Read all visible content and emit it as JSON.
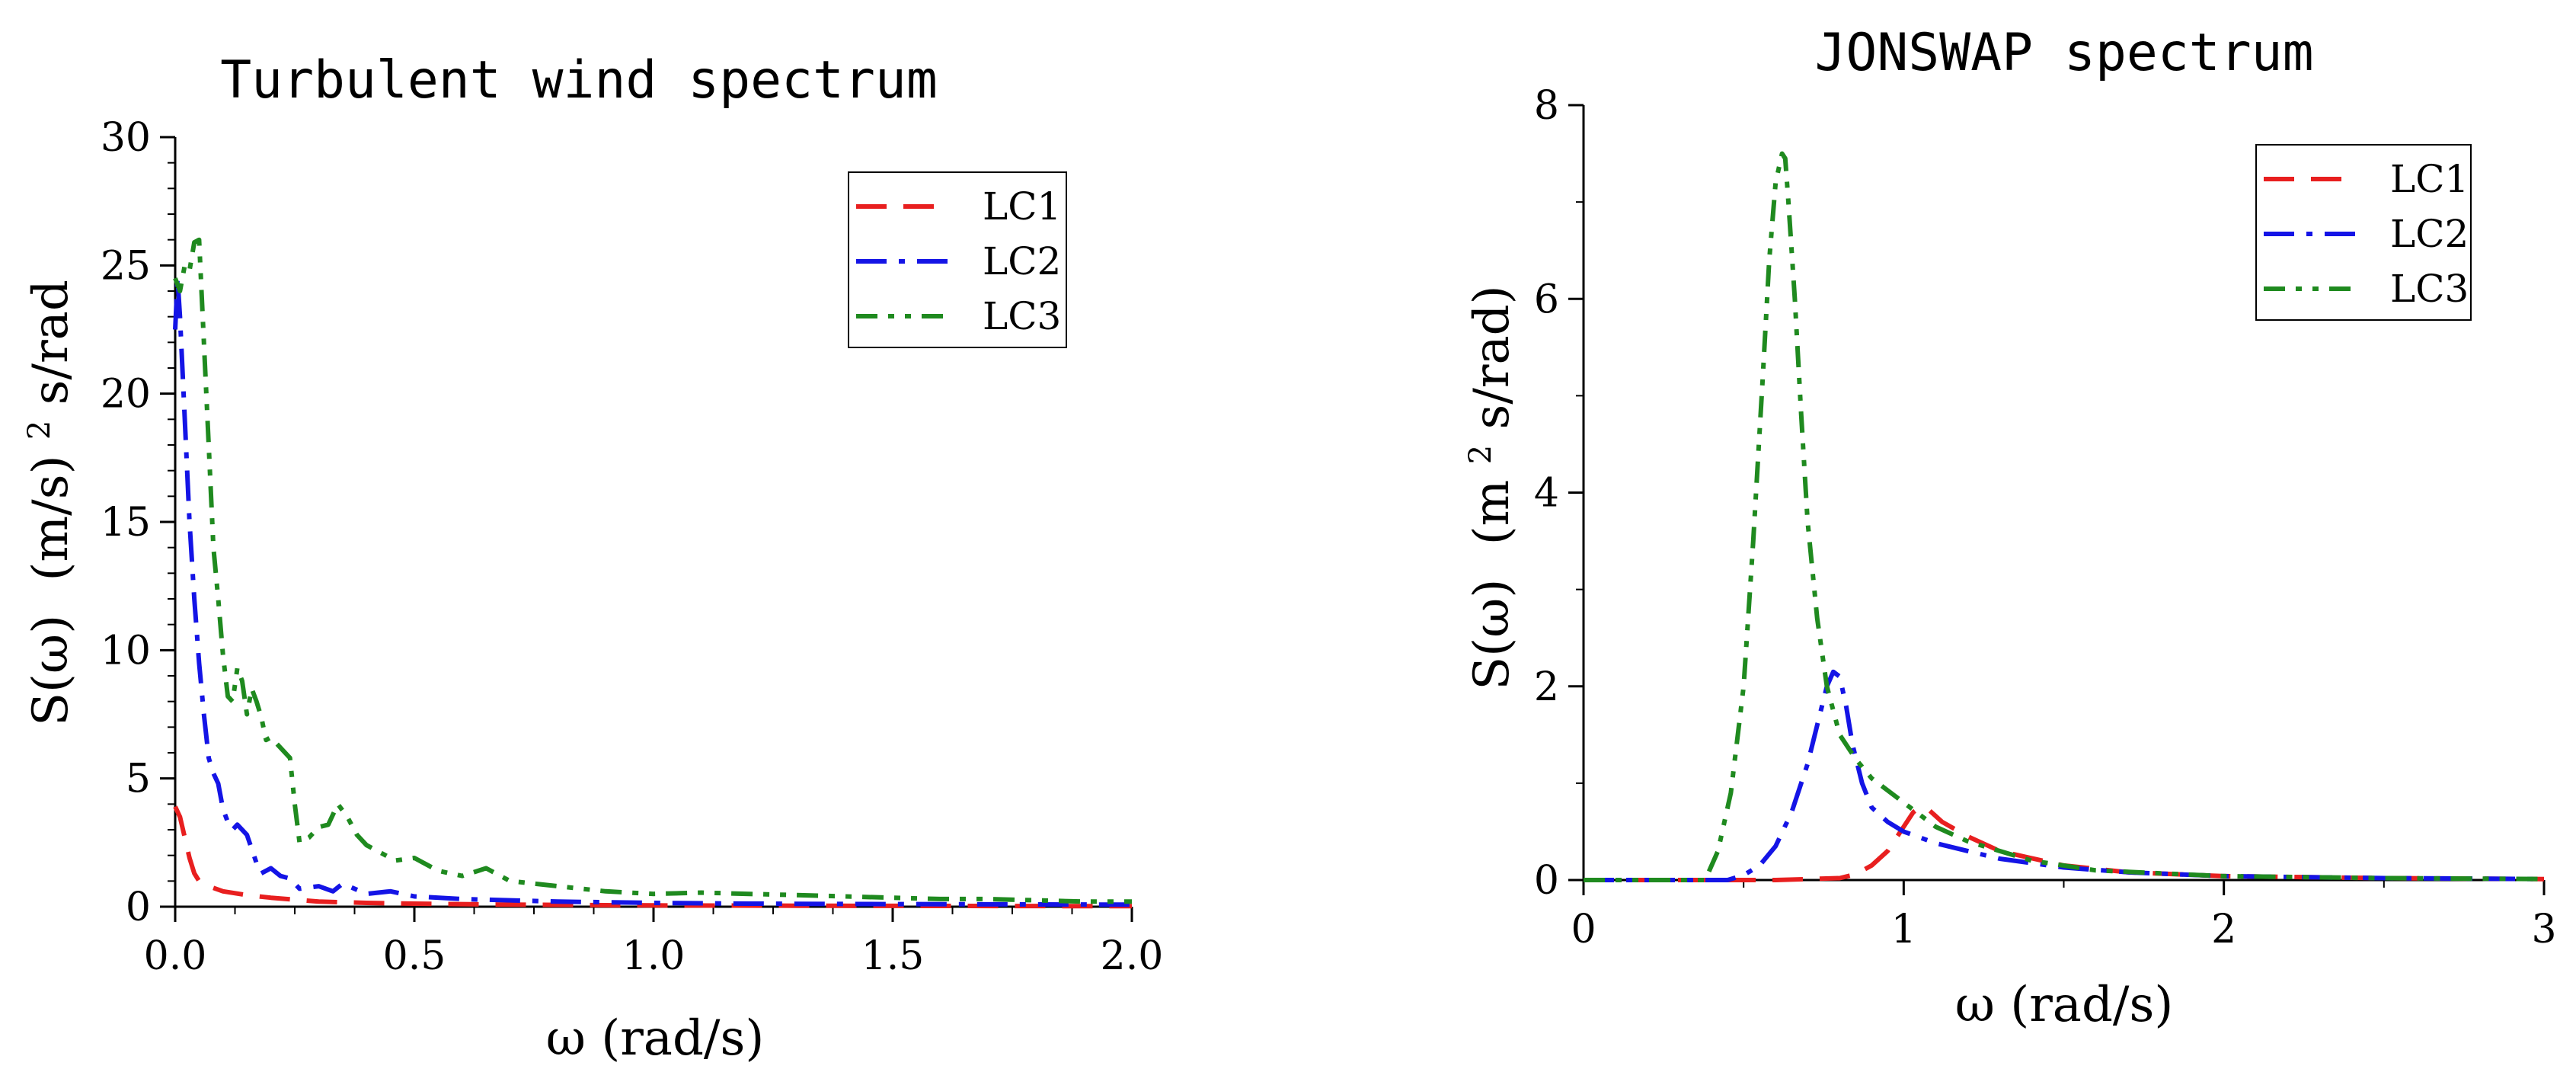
{
  "chart_data": [
    {
      "type": "line",
      "title": "Turbulent wind spectrum",
      "xlabel": "ω (rad/s)",
      "ylabel_left": "S(ω)",
      "ylabel_unit": "(m/s)",
      "ylabel_sup": "2",
      "ylabel_tail": "s/rad",
      "xlim": [
        0,
        2
      ],
      "ylim": [
        0,
        30
      ],
      "xticks": [
        0,
        0.5,
        1,
        1.5,
        2
      ],
      "xtick_labels": [
        "0.0",
        "0.5",
        "1.0",
        "1.5",
        "2.0"
      ],
      "yticks": [
        0,
        5,
        10,
        15,
        20,
        25,
        30
      ],
      "ytick_labels": [
        "0",
        "5",
        "10",
        "15",
        "20",
        "25",
        "30"
      ],
      "legend_position": "top-right",
      "series": [
        {
          "name": "LC1",
          "color": "#e81f1f",
          "dash": "dash",
          "x": [
            0,
            0.01,
            0.02,
            0.03,
            0.04,
            0.05,
            0.07,
            0.1,
            0.15,
            0.2,
            0.3,
            0.4,
            0.5,
            0.7,
            1.0,
            1.3,
            1.6,
            2.0
          ],
          "y": [
            3.9,
            3.5,
            2.7,
            1.9,
            1.3,
            1.0,
            0.8,
            0.6,
            0.45,
            0.35,
            0.2,
            0.15,
            0.12,
            0.08,
            0.05,
            0.04,
            0.03,
            0.02
          ]
        },
        {
          "name": "LC2",
          "color": "#1414e6",
          "dash": "dashdot",
          "x": [
            0,
            0.005,
            0.01,
            0.02,
            0.03,
            0.04,
            0.05,
            0.06,
            0.07,
            0.08,
            0.09,
            0.1,
            0.11,
            0.12,
            0.13,
            0.15,
            0.17,
            0.18,
            0.2,
            0.22,
            0.24,
            0.26,
            0.3,
            0.33,
            0.35,
            0.4,
            0.45,
            0.5,
            0.6,
            0.7,
            0.8,
            1.0,
            1.2,
            1.5,
            2.0
          ],
          "y": [
            22.5,
            24.5,
            23.0,
            19.0,
            15.0,
            12.0,
            9.5,
            7.5,
            5.8,
            5.2,
            4.8,
            3.8,
            3.3,
            3.0,
            3.2,
            2.8,
            1.7,
            1.3,
            1.5,
            1.2,
            1.1,
            0.7,
            0.8,
            0.6,
            0.9,
            0.5,
            0.6,
            0.4,
            0.3,
            0.25,
            0.2,
            0.15,
            0.12,
            0.1,
            0.08
          ]
        },
        {
          "name": "LC3",
          "color": "#1f8a1f",
          "dash": "dashdotdot",
          "x": [
            0,
            0.01,
            0.02,
            0.03,
            0.04,
            0.05,
            0.06,
            0.07,
            0.08,
            0.09,
            0.1,
            0.11,
            0.12,
            0.13,
            0.14,
            0.15,
            0.16,
            0.17,
            0.18,
            0.19,
            0.2,
            0.22,
            0.24,
            0.25,
            0.26,
            0.28,
            0.3,
            0.32,
            0.34,
            0.36,
            0.38,
            0.4,
            0.43,
            0.46,
            0.5,
            0.55,
            0.6,
            0.65,
            0.7,
            0.8,
            0.9,
            1.0,
            1.1,
            1.2,
            1.3,
            1.4,
            1.5,
            1.6,
            1.7,
            1.8,
            1.9,
            2.0
          ],
          "y": [
            24.5,
            24.0,
            25.0,
            24.8,
            25.9,
            26.0,
            22.0,
            18.0,
            14.0,
            12.0,
            9.8,
            8.2,
            8.0,
            9.3,
            8.8,
            7.5,
            8.5,
            8.0,
            7.4,
            6.5,
            6.6,
            6.2,
            5.8,
            4.0,
            2.5,
            2.7,
            3.1,
            3.2,
            4.0,
            3.5,
            2.8,
            2.4,
            2.1,
            1.8,
            1.9,
            1.4,
            1.2,
            1.5,
            1.0,
            0.8,
            0.6,
            0.5,
            0.55,
            0.5,
            0.45,
            0.4,
            0.35,
            0.3,
            0.3,
            0.25,
            0.2,
            0.2
          ]
        }
      ]
    },
    {
      "type": "line",
      "title": "JONSWAP spectrum",
      "xlabel": "ω (rad/s)",
      "ylabel_left": "S(ω)",
      "ylabel_unit": "(m",
      "ylabel_sup": "2",
      "ylabel_tail": "s/rad)",
      "xlim": [
        0,
        3
      ],
      "ylim": [
        0,
        8
      ],
      "xticks": [
        0,
        1,
        2,
        3
      ],
      "xtick_labels": [
        "0",
        "1",
        "2",
        "3"
      ],
      "yticks": [
        0,
        2,
        4,
        6,
        8
      ],
      "ytick_labels": [
        "0",
        "2",
        "4",
        "6",
        "8"
      ],
      "legend_position": "top-right",
      "series": [
        {
          "name": "LC1",
          "color": "#e81f1f",
          "dash": "dash",
          "x": [
            0,
            0.6,
            0.8,
            0.85,
            0.9,
            0.95,
            1.0,
            1.03,
            1.05,
            1.08,
            1.12,
            1.2,
            1.3,
            1.5,
            1.7,
            2.0,
            2.5,
            3.0
          ],
          "y": [
            0,
            0,
            0.02,
            0.06,
            0.15,
            0.3,
            0.55,
            0.7,
            0.75,
            0.72,
            0.6,
            0.45,
            0.3,
            0.15,
            0.08,
            0.04,
            0.02,
            0.01
          ]
        },
        {
          "name": "LC2",
          "color": "#1414e6",
          "dash": "dashdot",
          "x": [
            0,
            0.45,
            0.5,
            0.55,
            0.6,
            0.65,
            0.7,
            0.73,
            0.76,
            0.78,
            0.8,
            0.82,
            0.84,
            0.87,
            0.9,
            0.95,
            1.0,
            1.1,
            1.2,
            1.3,
            1.5,
            1.7,
            2.0,
            2.5,
            3.0
          ],
          "y": [
            0,
            0,
            0.05,
            0.15,
            0.35,
            0.7,
            1.2,
            1.6,
            2.0,
            2.15,
            2.1,
            1.8,
            1.4,
            1.0,
            0.75,
            0.6,
            0.5,
            0.38,
            0.3,
            0.22,
            0.13,
            0.08,
            0.04,
            0.02,
            0.01
          ]
        },
        {
          "name": "LC3",
          "color": "#1f8a1f",
          "dash": "dashdotdot",
          "x": [
            0,
            0.38,
            0.42,
            0.46,
            0.5,
            0.53,
            0.56,
            0.58,
            0.6,
            0.62,
            0.63,
            0.64,
            0.66,
            0.68,
            0.7,
            0.73,
            0.76,
            0.8,
            0.85,
            0.9,
            1.0,
            1.1,
            1.2,
            1.4,
            1.6,
            2.0,
            2.5,
            3.0
          ],
          "y": [
            0,
            0,
            0.3,
            0.9,
            2.0,
            3.5,
            5.2,
            6.4,
            7.2,
            7.5,
            7.45,
            7.0,
            6.0,
            4.8,
            3.7,
            2.7,
            2.0,
            1.5,
            1.25,
            1.05,
            0.8,
            0.55,
            0.4,
            0.2,
            0.1,
            0.04,
            0.02,
            0.01
          ]
        }
      ]
    }
  ]
}
